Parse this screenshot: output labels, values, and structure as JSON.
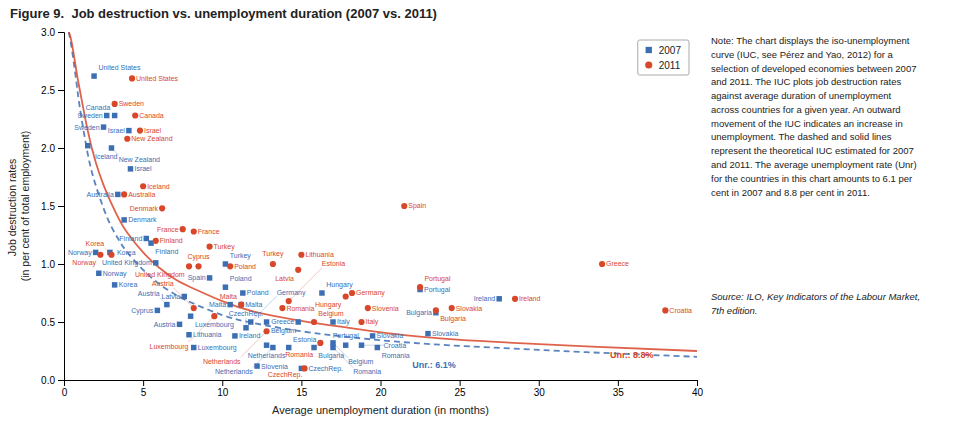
{
  "chart_data": {
    "type": "scatter",
    "title": "Figure 9.  Job destruction vs. unemployment duration (2007 vs. 2011)",
    "xlabel": "Average unemployment duration (in months)",
    "ylabel": "Job destruction rates\n(in per cent of total employment)",
    "xlim": [
      0,
      40
    ],
    "ylim": [
      0,
      3.0
    ],
    "xticks": [
      0,
      5,
      10,
      15,
      20,
      25,
      30,
      35,
      40
    ],
    "yticks": [
      {
        "value": 0,
        "label": "0.0"
      },
      0.5,
      {
        "value": 1.0,
        "label": "1.0"
      },
      1.5,
      {
        "value": 2.0,
        "label": "2.0"
      },
      2.5,
      {
        "value": 3.0,
        "label": "3.0"
      }
    ],
    "grid": false,
    "legend": "upper right",
    "series": [
      {
        "name": "2007",
        "type": "scatter",
        "marker": "square",
        "color": "#3c6eb4",
        "x": [
          1.9,
          2.7,
          3.2,
          2.5,
          4.1,
          1.5,
          3.0,
          4.2,
          3.4,
          3.8,
          5.2,
          5.5,
          2.0,
          2.9,
          5.8,
          2.2,
          3.2,
          5.9,
          7.6,
          6.5,
          8.0,
          7.3,
          7.9,
          8.2,
          10.5,
          11.2,
          11.8,
          12.8,
          11.5,
          10.8,
          12.8,
          12.2,
          14.2,
          15.8,
          14.8,
          17.0,
          17.8,
          17.0,
          18.8,
          19.5,
          19.8,
          23.0,
          27.5,
          15.0,
          13.2,
          10.2,
          11.3,
          9.2,
          10.2,
          16.3,
          17.0,
          23.5,
          22.5
        ],
        "values": [
          2.62,
          2.28,
          2.28,
          2.18,
          2.15,
          2.02,
          2.0,
          1.82,
          1.6,
          1.38,
          1.22,
          1.18,
          1.1,
          1.1,
          1.01,
          0.92,
          0.82,
          0.6,
          0.72,
          0.65,
          0.55,
          0.48,
          0.39,
          0.28,
          0.65,
          0.65,
          0.5,
          0.5,
          0.45,
          0.38,
          0.3,
          0.12,
          0.28,
          0.28,
          0.5,
          0.5,
          0.3,
          0.32,
          0.3,
          0.38,
          0.28,
          0.4,
          0.7,
          0.1,
          0.28,
          0.8,
          0.75,
          0.88,
          1.0,
          0.75,
          0.28,
          0.58,
          0.78
        ],
        "labels": [
          "United States",
          "Sweden",
          "Canada",
          "Sweden",
          "Israel",
          "Iceland",
          "New Zealand",
          "Israel",
          "Australia",
          "Denmark",
          "Finland",
          "Finland",
          "Norway",
          "Korea",
          "United Kingdom",
          "Norway",
          "Korea",
          "Cyprus",
          "Latvia",
          "Austria",
          "Luxembourg",
          "Austria",
          "Lithuania",
          "Luxembourg",
          "Malta",
          "Malta",
          "Germany",
          "Belgium",
          "CzechRep.",
          "Ireland",
          "Netherlands",
          "Slovenia",
          "Estonia",
          "Bulgaria",
          "Greece",
          "Italy",
          "Portugal",
          "Belgium",
          "Croatia",
          "Slovakia",
          "Romania",
          "Slovakia",
          "Ireland",
          "CzechRep.",
          "Netherlands",
          "Poland",
          "Poland",
          "Spain",
          "Turkey",
          "Hungary",
          "Romania",
          "Bulgaria",
          "Portugal"
        ]
      },
      {
        "name": "2011",
        "type": "scatter",
        "marker": "circle",
        "color": "#d9472b",
        "x": [
          4.3,
          3.2,
          4.5,
          4.8,
          4.0,
          5.0,
          3.8,
          6.2,
          7.5,
          8.2,
          5.8,
          9.2,
          15.0,
          3.0,
          2.3,
          8.5,
          7.9,
          10.5,
          21.5,
          13.2,
          14.8,
          22.5,
          18.2,
          17.8,
          28.5,
          14.2,
          23.5,
          24.5,
          19.2,
          13.8,
          8.2,
          11.2,
          38.0,
          34.0,
          15.8,
          18.8,
          9.5,
          12.8,
          16.2,
          15.2
        ],
        "values": [
          2.6,
          2.38,
          2.28,
          2.15,
          2.08,
          1.67,
          1.6,
          1.48,
          1.3,
          1.28,
          1.2,
          1.15,
          1.08,
          1.08,
          1.08,
          0.98,
          0.98,
          0.98,
          1.5,
          1.0,
          0.95,
          0.8,
          0.75,
          0.72,
          0.7,
          0.68,
          0.6,
          0.62,
          0.62,
          0.62,
          0.62,
          0.65,
          0.6,
          1.0,
          0.5,
          0.5,
          0.55,
          0.42,
          0.32,
          0.1
        ],
        "labels": [
          "United States",
          "Sweden",
          "Canada",
          "Israel",
          "New Zealand",
          "Iceland",
          "Australia",
          "Denmark",
          "France",
          "France",
          "Finland",
          "Turkey",
          "Lithuania",
          "Korea",
          "Norway",
          "Cyprus",
          "United Kingdom",
          "Poland",
          "Spain",
          "Turkey",
          "Latvia",
          "Portugal",
          "Germany",
          "Hungary",
          "Ireland",
          "Estonia",
          "Bulgaria",
          "Slovakia",
          "Slovenia",
          "Romania",
          "Austria",
          "Malta",
          "Croatia",
          "Greece",
          "Belgium",
          "Italy",
          "Luxembourg",
          "Netherlands",
          "Romania",
          "CzechRep."
        ]
      },
      {
        "type": "line",
        "line_style": "dashed",
        "color": "#3c6eb4",
        "x": [
          0.3,
          0.5,
          0.8,
          1.0,
          1.5,
          2.0,
          2.5,
          3.0,
          3.5,
          4.0,
          5.0,
          6.0,
          7.0,
          8.0,
          10.0,
          12.0,
          15.0,
          18.0,
          22.0,
          27.0,
          33.0,
          40.0
        ],
        "values": [
          3.0,
          2.85,
          2.55,
          2.35,
          1.95,
          1.68,
          1.48,
          1.32,
          1.2,
          1.1,
          0.95,
          0.83,
          0.74,
          0.67,
          0.56,
          0.49,
          0.42,
          0.37,
          0.32,
          0.28,
          0.24,
          0.2
        ]
      },
      {
        "type": "line",
        "line_style": "solid",
        "color": "#d9472b",
        "x": [
          0.3,
          0.5,
          0.8,
          1.0,
          1.5,
          2.0,
          2.5,
          3.0,
          3.5,
          4.0,
          5.0,
          6.0,
          7.0,
          8.0,
          10.0,
          12.0,
          15.0,
          18.0,
          22.0,
          27.0,
          33.0,
          40.0
        ],
        "values": [
          3.0,
          2.9,
          2.65,
          2.5,
          2.15,
          1.88,
          1.68,
          1.52,
          1.38,
          1.27,
          1.1,
          0.97,
          0.87,
          0.8,
          0.68,
          0.59,
          0.51,
          0.45,
          0.38,
          0.33,
          0.29,
          0.25
        ]
      }
    ],
    "annotations": [
      {
        "text": "Unr.: 6.1%",
        "x": 22.0,
        "y": 0.13,
        "color": "#3c6eb4"
      },
      {
        "text": "Unr.: 8.8%",
        "x": 34.5,
        "y": 0.22,
        "color": "#d9472b"
      }
    ],
    "note": "Note: The chart displays the iso-unemployment\ncurve (IUC, see Pérez and Yao, 2012) for a\nselection of developed economies between 2007\nand 2011. The IUC plots job destruction rates\nagainst average duration of unemployment\nacross countries for a given year. An outward\nmovement of the IUC indicates an increase in\nunemployment. The dashed and solid lines\nrepresent the theoretical IUC estimated for 2007\nand 2011. The average unemployment rate (Unr)\nfor the countries in this chart amounts to 6.1 per\ncent in 2007 and 8.8 per cent in 2011.",
    "source": "Source: ILO, Key Indicators of the Labour Market,\n7th edition."
  }
}
